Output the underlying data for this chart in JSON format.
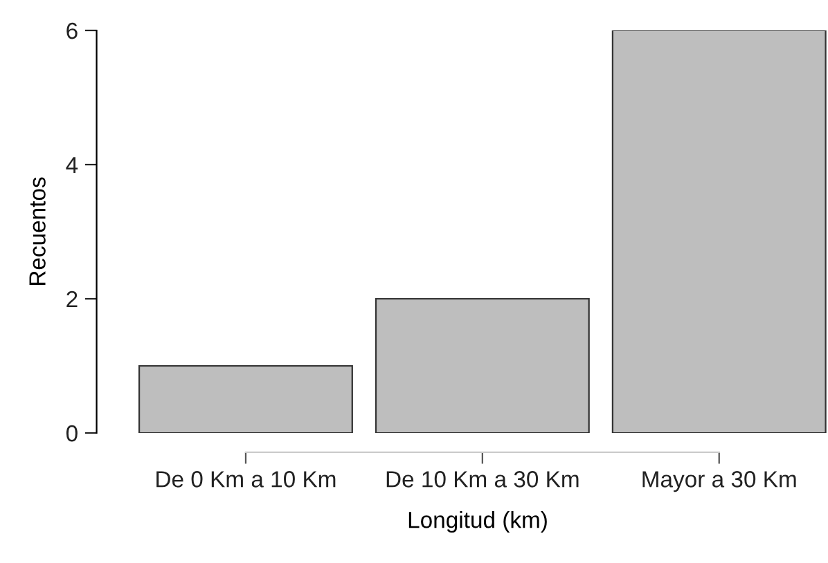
{
  "chart_data": {
    "type": "bar",
    "xlabel": "Longitud (km)",
    "ylabel": "Recuentos",
    "categories": [
      "De 0 Km a 10 Km",
      "De 10 Km a 30 Km",
      "Mayor a 30 Km"
    ],
    "values": [
      1,
      2,
      6
    ],
    "color": "#bebebe",
    "ylim": [
      0,
      6
    ],
    "yticks": [
      0,
      2,
      4,
      6
    ],
    "grid": false,
    "legend": false
  }
}
